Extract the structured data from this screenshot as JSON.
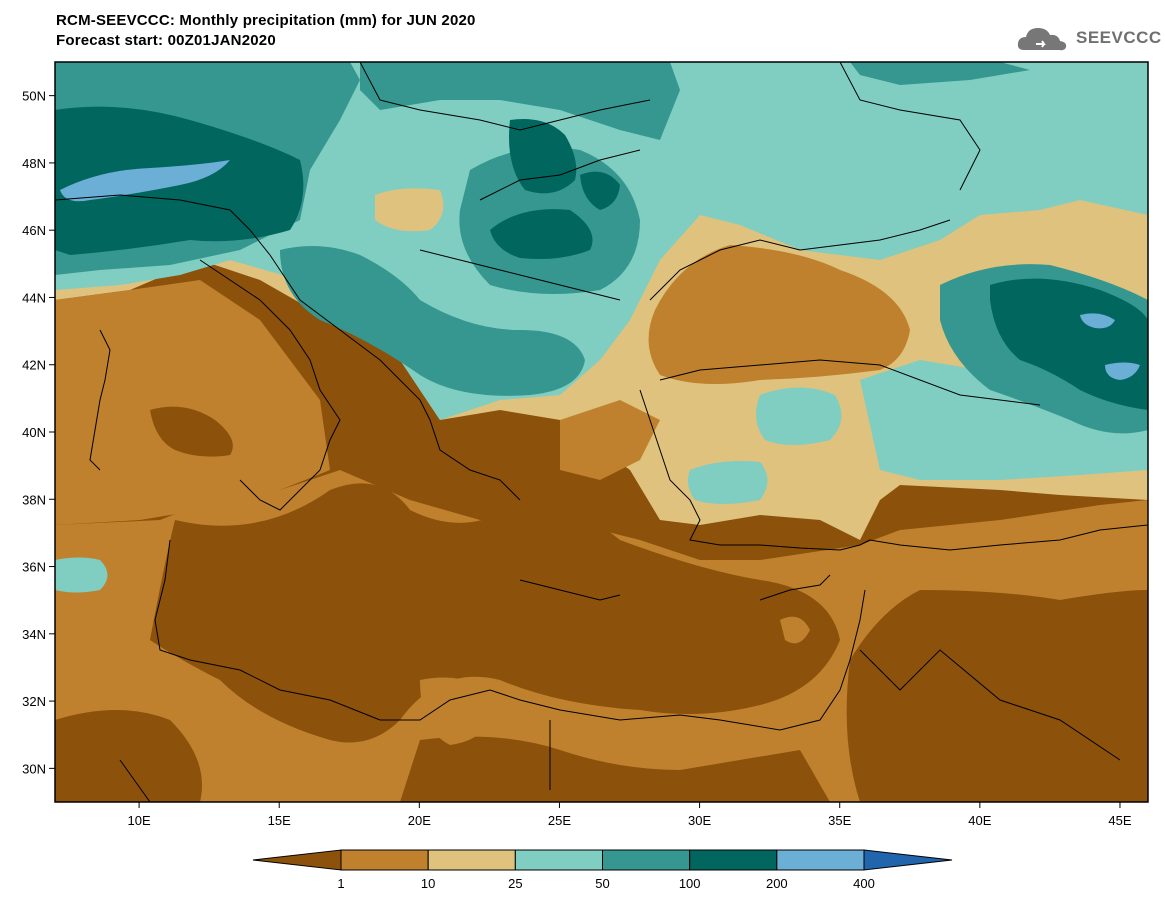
{
  "header": {
    "title": "RCM-SEEVCCC: Monthly precipitation (mm) for JUN 2020",
    "subtitle": "Forecast start: 00Z01JAN2020"
  },
  "logo": {
    "text": "SEEVCCC",
    "icon": "cloud-icon"
  },
  "map": {
    "lat_ticks": [
      "50N",
      "48N",
      "46N",
      "44N",
      "42N",
      "40N",
      "38N",
      "36N",
      "34N",
      "32N",
      "30N"
    ],
    "lon_ticks": [
      "10E",
      "15E",
      "20E",
      "25E",
      "30E",
      "35E",
      "40E",
      "45E"
    ],
    "extent": {
      "lon_min": 7,
      "lon_max": 46,
      "lat_min": 29,
      "lat_max": 51
    }
  },
  "legend": {
    "labels": [
      "1",
      "10",
      "25",
      "50",
      "100",
      "200",
      "400"
    ],
    "colors": [
      "#8c510a",
      "#bf812d",
      "#dfc27d",
      "#80cdc1",
      "#35978f",
      "#01665e",
      "#6baed6",
      "#2166ac"
    ],
    "units": "mm"
  }
}
